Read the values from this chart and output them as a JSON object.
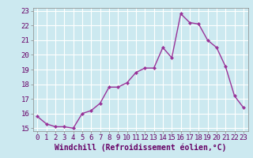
{
  "x": [
    0,
    1,
    2,
    3,
    4,
    5,
    6,
    7,
    8,
    9,
    10,
    11,
    12,
    13,
    14,
    15,
    16,
    17,
    18,
    19,
    20,
    21,
    22,
    23
  ],
  "y": [
    15.8,
    15.3,
    15.1,
    15.1,
    15.0,
    16.0,
    16.2,
    16.7,
    17.8,
    17.8,
    18.1,
    18.8,
    19.1,
    19.1,
    20.5,
    19.8,
    22.8,
    22.2,
    22.1,
    21.0,
    20.5,
    19.2,
    17.2,
    16.4
  ],
  "line_color": "#993399",
  "marker": "D",
  "marker_size": 2.0,
  "bg_color": "#cce9f0",
  "grid_color": "#ffffff",
  "xlabel": "Windchill (Refroidissement éolien,°C)",
  "ylabel": "",
  "xlim": [
    -0.5,
    23.5
  ],
  "ylim": [
    14.8,
    23.2
  ],
  "yticks": [
    15,
    16,
    17,
    18,
    19,
    20,
    21,
    22,
    23
  ],
  "xticks": [
    0,
    1,
    2,
    3,
    4,
    5,
    6,
    7,
    8,
    9,
    10,
    11,
    12,
    13,
    14,
    15,
    16,
    17,
    18,
    19,
    20,
    21,
    22,
    23
  ],
  "xlabel_fontsize": 7.0,
  "tick_fontsize": 6.5,
  "line_width": 1.0
}
